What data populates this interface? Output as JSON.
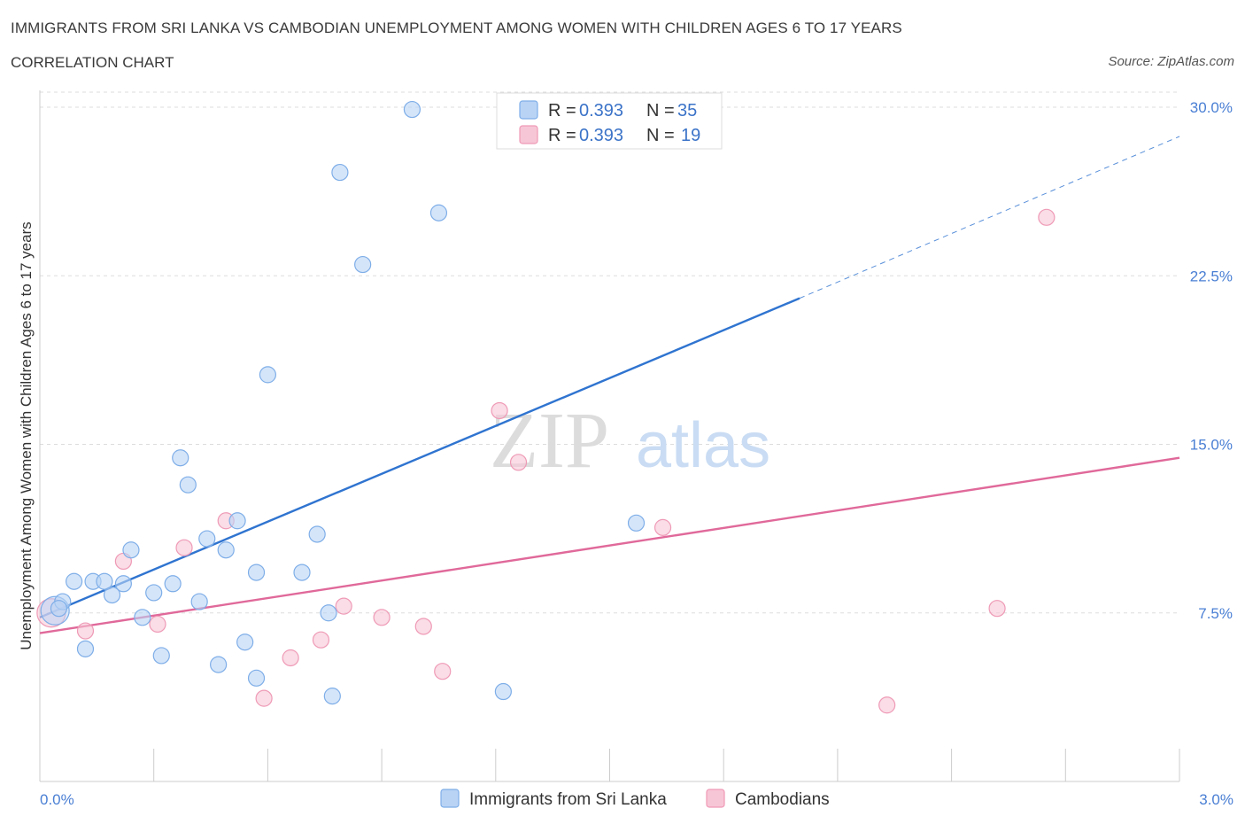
{
  "title": "IMMIGRANTS FROM SRI LANKA VS CAMBODIAN UNEMPLOYMENT AMONG WOMEN WITH CHILDREN AGES 6 TO 17 YEARS",
  "subtitle": "CORRELATION CHART",
  "source": "Source: ZipAtlas.com",
  "watermark": {
    "zip": "ZIP",
    "atlas": "atlas"
  },
  "colors": {
    "blue_fill": "#b9d3f5",
    "blue_stroke": "#7eaee8",
    "blue_line": "#2f74d0",
    "pink_fill": "#f7c6d6",
    "pink_stroke": "#ef9ab6",
    "pink_line": "#e0699a",
    "grid": "#dddddd",
    "tick_label": "#4a7fd4"
  },
  "legend": {
    "rows": [
      {
        "r_label": "R =",
        "r_value": "0.393",
        "n_label": "N =",
        "n_value": "35"
      },
      {
        "r_label": "R =",
        "r_value": "0.393",
        "n_label": "N =",
        "n_value": "19"
      }
    ]
  },
  "chart_data": {
    "type": "scatter",
    "title": "IMMIGRANTS FROM SRI LANKA VS CAMBODIAN UNEMPLOYMENT AMONG WOMEN WITH CHILDREN AGES 6 TO 17 YEARS",
    "xlabel": "",
    "ylabel": "Unemployment Among Women with Children Ages 6 to 17 years",
    "xlim": [
      0.0,
      3.0
    ],
    "ylim": [
      0.0,
      30.75
    ],
    "x_tick_labels": [
      {
        "value": 0.0,
        "label": "0.0%"
      },
      {
        "value": 3.0,
        "label": "3.0%"
      }
    ],
    "y_ticks": [
      {
        "value": 7.5,
        "label": "7.5%"
      },
      {
        "value": 15.0,
        "label": "15.0%"
      },
      {
        "value": 22.5,
        "label": "22.5%"
      },
      {
        "value": 30.0,
        "label": "30.0%"
      }
    ],
    "series": [
      {
        "name": "Immigrants from Sri Lanka",
        "color": "blue",
        "trend": {
          "x": [
            0.0,
            2.0
          ],
          "y": [
            7.3,
            21.5
          ],
          "dashed_to": [
            3.0,
            28.7
          ]
        },
        "points": [
          {
            "x": 0.04,
            "y": 7.6,
            "big": true
          },
          {
            "x": 0.06,
            "y": 8.0
          },
          {
            "x": 0.09,
            "y": 8.9
          },
          {
            "x": 0.12,
            "y": 5.9
          },
          {
            "x": 0.14,
            "y": 8.9
          },
          {
            "x": 0.17,
            "y": 8.9
          },
          {
            "x": 0.19,
            "y": 8.3
          },
          {
            "x": 0.22,
            "y": 8.8
          },
          {
            "x": 0.24,
            "y": 10.3
          },
          {
            "x": 0.27,
            "y": 7.3
          },
          {
            "x": 0.3,
            "y": 8.4
          },
          {
            "x": 0.32,
            "y": 5.6
          },
          {
            "x": 0.35,
            "y": 8.8
          },
          {
            "x": 0.37,
            "y": 14.4
          },
          {
            "x": 0.39,
            "y": 13.2
          },
          {
            "x": 0.42,
            "y": 8.0
          },
          {
            "x": 0.44,
            "y": 10.8
          },
          {
            "x": 0.47,
            "y": 5.2
          },
          {
            "x": 0.49,
            "y": 10.3
          },
          {
            "x": 0.52,
            "y": 11.6
          },
          {
            "x": 0.54,
            "y": 6.2
          },
          {
            "x": 0.57,
            "y": 4.6
          },
          {
            "x": 0.57,
            "y": 9.3
          },
          {
            "x": 0.6,
            "y": 18.1
          },
          {
            "x": 0.69,
            "y": 9.3
          },
          {
            "x": 0.73,
            "y": 11.0
          },
          {
            "x": 0.76,
            "y": 7.5
          },
          {
            "x": 0.77,
            "y": 3.8
          },
          {
            "x": 0.79,
            "y": 27.1
          },
          {
            "x": 0.85,
            "y": 23.0
          },
          {
            "x": 0.98,
            "y": 29.9
          },
          {
            "x": 1.05,
            "y": 25.3
          },
          {
            "x": 1.22,
            "y": 4.0
          },
          {
            "x": 1.57,
            "y": 11.5
          },
          {
            "x": 0.05,
            "y": 7.7
          }
        ]
      },
      {
        "name": "Cambodians",
        "color": "pink",
        "trend": {
          "x": [
            0.0,
            3.0
          ],
          "y": [
            6.6,
            14.4
          ]
        },
        "points": [
          {
            "x": 0.03,
            "y": 7.5,
            "big": true
          },
          {
            "x": 0.12,
            "y": 6.7
          },
          {
            "x": 0.22,
            "y": 9.8
          },
          {
            "x": 0.31,
            "y": 7.0
          },
          {
            "x": 0.38,
            "y": 10.4
          },
          {
            "x": 0.49,
            "y": 11.6
          },
          {
            "x": 0.59,
            "y": 3.7
          },
          {
            "x": 0.66,
            "y": 5.5
          },
          {
            "x": 0.74,
            "y": 6.3
          },
          {
            "x": 0.8,
            "y": 7.8
          },
          {
            "x": 0.9,
            "y": 7.3
          },
          {
            "x": 1.01,
            "y": 6.9
          },
          {
            "x": 1.06,
            "y": 4.9
          },
          {
            "x": 1.21,
            "y": 16.5
          },
          {
            "x": 1.26,
            "y": 14.2
          },
          {
            "x": 1.64,
            "y": 11.3
          },
          {
            "x": 2.23,
            "y": 3.4
          },
          {
            "x": 2.52,
            "y": 7.7
          },
          {
            "x": 2.65,
            "y": 25.1
          }
        ]
      }
    ]
  }
}
